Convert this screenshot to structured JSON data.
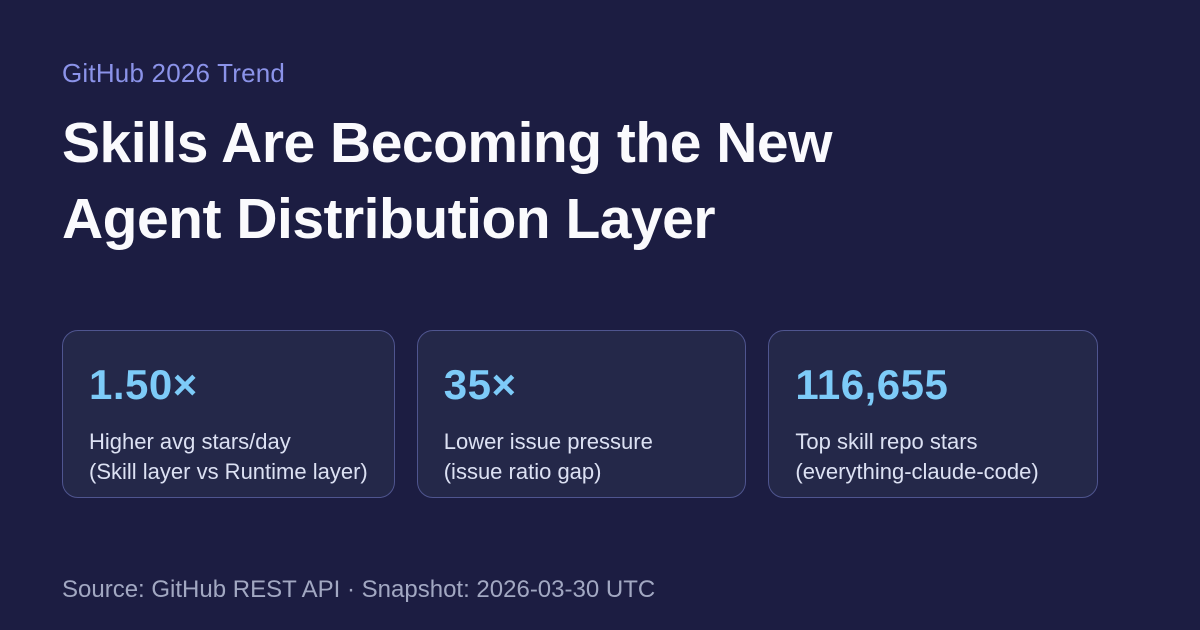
{
  "page": {
    "background": "#1c1d42",
    "accent_blue": "#7dcbf8",
    "eyebrow_color": "#8b93e9",
    "card_border_color": "#4f558f"
  },
  "header": {
    "eyebrow": "GitHub 2026 Trend",
    "title_line1": "Skills Are Becoming the New",
    "title_line2": "Agent Distribution Layer"
  },
  "stats": [
    {
      "value": "1.50×",
      "label_line1": "Higher avg stars/day",
      "label_line2": "(Skill layer vs Runtime layer)"
    },
    {
      "value": "35×",
      "label_line1": "Lower issue pressure",
      "label_line2": "(issue ratio gap)"
    },
    {
      "value": "116,655",
      "label_line1": "Top skill repo stars",
      "label_line2": "(everything-claude-code)"
    }
  ],
  "footer": {
    "text": "Source: GitHub REST API · Snapshot: 2026-03-30 UTC"
  }
}
